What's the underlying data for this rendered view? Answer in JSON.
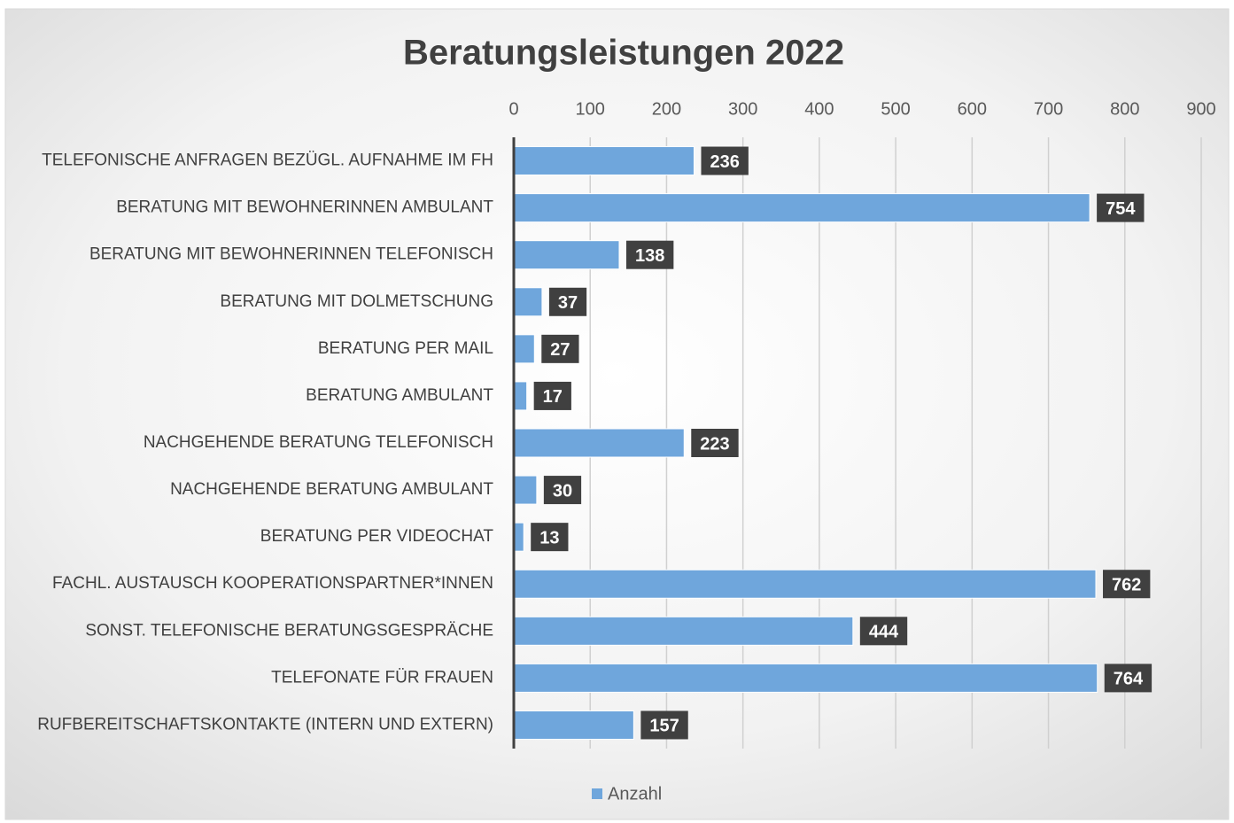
{
  "chart_data": {
    "type": "bar",
    "orientation": "horizontal",
    "title": "Beratungsleistungen 2022",
    "categories": [
      "TELEFONISCHE ANFRAGEN BEZÜGL. AUFNAHME IM FH",
      "BERATUNG MIT BEWOHNERINNEN AMBULANT",
      "BERATUNG MIT BEWOHNERINNEN TELEFONISCH",
      "BERATUNG MIT DOLMETSCHUNG",
      "BERATUNG PER MAIL",
      "BERATUNG AMBULANT",
      "NACHGEHENDE BERATUNG TELEFONISCH",
      "NACHGEHENDE BERATUNG AMBULANT",
      "BERATUNG PER VIDEOCHAT",
      "FACHL. AUSTAUSCH KOOPERATIONSPARTNER*INNEN",
      "SONST. TELEFONISCHE BERATUNGSGESPRÄCHE",
      "TELEFONATE FÜR FRAUEN",
      "RUFBEREITSCHAFTSKONTAKTE (INTERN UND EXTERN)"
    ],
    "series": [
      {
        "name": "Anzahl",
        "color": "#6fa6dc",
        "values": [
          236,
          754,
          138,
          37,
          27,
          17,
          223,
          30,
          13,
          762,
          444,
          764,
          157
        ]
      }
    ],
    "xlim": [
      0,
      900
    ],
    "xticks": [
      0,
      100,
      200,
      300,
      400,
      500,
      600,
      700,
      800,
      900
    ],
    "grid": true,
    "legend": "bottom"
  }
}
